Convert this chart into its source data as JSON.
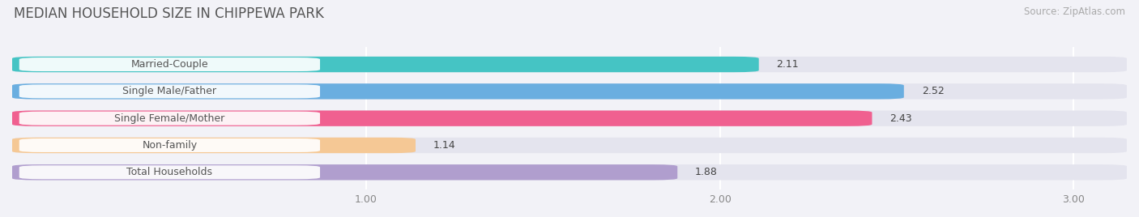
{
  "title": "MEDIAN HOUSEHOLD SIZE IN CHIPPEWA PARK",
  "source": "Source: ZipAtlas.com",
  "categories": [
    "Married-Couple",
    "Single Male/Father",
    "Single Female/Mother",
    "Non-family",
    "Total Households"
  ],
  "values": [
    2.11,
    2.52,
    2.43,
    1.14,
    1.88
  ],
  "bar_colors": [
    "#45c4c4",
    "#6aaee0",
    "#f06090",
    "#f5c895",
    "#b09ece"
  ],
  "value_text_colors": [
    "#444444",
    "#ffffff",
    "#ffffff",
    "#444444",
    "#444444"
  ],
  "xlim_left": 0.0,
  "xlim_right": 3.15,
  "xticks": [
    1.0,
    2.0,
    3.0
  ],
  "xtick_labels": [
    "1.00",
    "2.00",
    "3.00"
  ],
  "bg_color": "#f2f2f7",
  "bar_bg_color": "#e4e4ee",
  "bar_height": 0.58,
  "title_fontsize": 12,
  "source_fontsize": 8.5,
  "value_fontsize": 9,
  "label_fontsize": 9,
  "label_bg_color": "#ffffff"
}
